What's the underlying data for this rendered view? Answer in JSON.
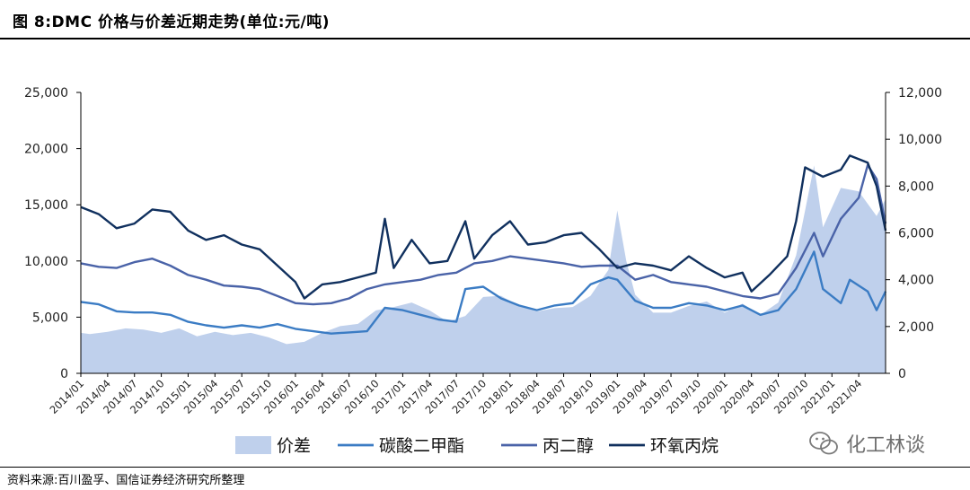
{
  "figure": {
    "title": "图 8:DMC 价格与价差近期走势(单位:元/吨)",
    "source": "资料来源:百川盈孚、国信证券经济研究所整理",
    "watermark": "化工林谈"
  },
  "chart_data": {
    "type": "line",
    "title": "图 8:DMC 价格与价差近期走势(单位:元/吨)",
    "xlabel": "",
    "ylabel_left": "",
    "ylabel_right": "",
    "y_left": {
      "lim": [
        0,
        25000
      ],
      "ticks": [
        0,
        5000,
        10000,
        15000,
        20000,
        25000
      ],
      "tick_labels": [
        "0",
        "5,000",
        "10,000",
        "15,000",
        "20,000",
        "25,000"
      ]
    },
    "y_right": {
      "lim": [
        0,
        12000
      ],
      "ticks": [
        0,
        2000,
        4000,
        6000,
        8000,
        10000,
        12000
      ],
      "tick_labels": [
        "0",
        "2,000",
        "4,000",
        "6,000",
        "8,000",
        "10,000",
        "12,000"
      ]
    },
    "x_tick_labels": [
      "2014/01",
      "2014/04",
      "2014/07",
      "2014/10",
      "2015/01",
      "2015/04",
      "2015/07",
      "2015/10",
      "2016/01",
      "2016/04",
      "2016/07",
      "2016/10",
      "2017/01",
      "2017/04",
      "2017/07",
      "2017/10",
      "2018/01",
      "2018/04",
      "2018/07",
      "2018/10",
      "2019/01",
      "2019/04",
      "2019/07",
      "2019/10",
      "2020/01",
      "2020/04",
      "2020/07",
      "2020/10",
      "2021/01",
      "2021/04"
    ],
    "x_end": "2021/07",
    "grid": false,
    "legend_position": "bottom",
    "series": [
      {
        "name": "价差",
        "type": "area",
        "axis": "left",
        "color": "#bfd0ec",
        "points": [
          [
            "2014/01",
            3600
          ],
          [
            "2014/02",
            3500
          ],
          [
            "2014/04",
            3700
          ],
          [
            "2014/06",
            4000
          ],
          [
            "2014/08",
            3900
          ],
          [
            "2014/10",
            3600
          ],
          [
            "2014/12",
            4000
          ],
          [
            "2015/02",
            3300
          ],
          [
            "2015/04",
            3700
          ],
          [
            "2015/06",
            3400
          ],
          [
            "2015/08",
            3600
          ],
          [
            "2015/10",
            3200
          ],
          [
            "2015/12",
            2600
          ],
          [
            "2016/02",
            2800
          ],
          [
            "2016/04",
            3600
          ],
          [
            "2016/06",
            4200
          ],
          [
            "2016/08",
            4400
          ],
          [
            "2016/10",
            5600
          ],
          [
            "2016/12",
            5900
          ],
          [
            "2017/02",
            6300
          ],
          [
            "2017/04",
            5600
          ],
          [
            "2017/06",
            4600
          ],
          [
            "2017/08",
            5100
          ],
          [
            "2017/10",
            6800
          ],
          [
            "2017/12",
            6900
          ],
          [
            "2018/02",
            6000
          ],
          [
            "2018/04",
            5500
          ],
          [
            "2018/06",
            5800
          ],
          [
            "2018/08",
            5900
          ],
          [
            "2018/10",
            6900
          ],
          [
            "2018/12",
            9200
          ],
          [
            "2019/01",
            14500
          ],
          [
            "2019/02",
            10000
          ],
          [
            "2019/03",
            7000
          ],
          [
            "2019/05",
            5400
          ],
          [
            "2019/07",
            5400
          ],
          [
            "2019/09",
            6000
          ],
          [
            "2019/11",
            6400
          ],
          [
            "2020/01",
            5400
          ],
          [
            "2020/03",
            6200
          ],
          [
            "2020/05",
            5200
          ],
          [
            "2020/07",
            6300
          ],
          [
            "2020/09",
            10500
          ],
          [
            "2020/11",
            18500
          ],
          [
            "2020/12",
            13000
          ],
          [
            "2021/02",
            16500
          ],
          [
            "2021/04",
            16200
          ],
          [
            "2021/06",
            14000
          ],
          [
            "2021/07",
            15500
          ]
        ]
      },
      {
        "name": "碳酸二甲酯",
        "type": "line",
        "axis": "right",
        "color": "#3b7cc4",
        "points": [
          [
            "2014/01",
            3050
          ],
          [
            "2014/03",
            2950
          ],
          [
            "2014/05",
            2650
          ],
          [
            "2014/07",
            2600
          ],
          [
            "2014/09",
            2600
          ],
          [
            "2014/11",
            2500
          ],
          [
            "2015/01",
            2200
          ],
          [
            "2015/03",
            2050
          ],
          [
            "2015/05",
            1950
          ],
          [
            "2015/07",
            2050
          ],
          [
            "2015/09",
            1950
          ],
          [
            "2015/11",
            2100
          ],
          [
            "2016/01",
            1900
          ],
          [
            "2016/03",
            1800
          ],
          [
            "2016/05",
            1700
          ],
          [
            "2016/07",
            1750
          ],
          [
            "2016/09",
            1800
          ],
          [
            "2016/11",
            2800
          ],
          [
            "2017/01",
            2700
          ],
          [
            "2017/03",
            2500
          ],
          [
            "2017/05",
            2300
          ],
          [
            "2017/07",
            2200
          ],
          [
            "2017/08",
            3600
          ],
          [
            "2017/10",
            3700
          ],
          [
            "2017/12",
            3200
          ],
          [
            "2018/02",
            2900
          ],
          [
            "2018/04",
            2700
          ],
          [
            "2018/06",
            2900
          ],
          [
            "2018/08",
            3000
          ],
          [
            "2018/10",
            3800
          ],
          [
            "2018/12",
            4100
          ],
          [
            "2019/01",
            4000
          ],
          [
            "2019/03",
            3100
          ],
          [
            "2019/05",
            2800
          ],
          [
            "2019/07",
            2800
          ],
          [
            "2019/09",
            3000
          ],
          [
            "2019/11",
            2900
          ],
          [
            "2020/01",
            2700
          ],
          [
            "2020/03",
            2900
          ],
          [
            "2020/05",
            2500
          ],
          [
            "2020/07",
            2700
          ],
          [
            "2020/09",
            3600
          ],
          [
            "2020/11",
            5200
          ],
          [
            "2020/12",
            3600
          ],
          [
            "2021/02",
            3000
          ],
          [
            "2021/03",
            4000
          ],
          [
            "2021/05",
            3500
          ],
          [
            "2021/06",
            2700
          ],
          [
            "2021/07",
            3500
          ]
        ]
      },
      {
        "name": "丙二醇",
        "type": "line",
        "axis": "right",
        "color": "#4a63a8",
        "points": [
          [
            "2014/01",
            4700
          ],
          [
            "2014/03",
            4550
          ],
          [
            "2014/05",
            4500
          ],
          [
            "2014/07",
            4750
          ],
          [
            "2014/09",
            4900
          ],
          [
            "2014/11",
            4600
          ],
          [
            "2015/01",
            4200
          ],
          [
            "2015/03",
            4000
          ],
          [
            "2015/05",
            3750
          ],
          [
            "2015/07",
            3700
          ],
          [
            "2015/09",
            3600
          ],
          [
            "2015/11",
            3300
          ],
          [
            "2016/01",
            3000
          ],
          [
            "2016/03",
            2950
          ],
          [
            "2016/05",
            3000
          ],
          [
            "2016/07",
            3200
          ],
          [
            "2016/09",
            3600
          ],
          [
            "2016/11",
            3800
          ],
          [
            "2017/01",
            3900
          ],
          [
            "2017/03",
            4000
          ],
          [
            "2017/05",
            4200
          ],
          [
            "2017/07",
            4300
          ],
          [
            "2017/09",
            4700
          ],
          [
            "2017/11",
            4800
          ],
          [
            "2018/01",
            5000
          ],
          [
            "2018/03",
            4900
          ],
          [
            "2018/05",
            4800
          ],
          [
            "2018/07",
            4700
          ],
          [
            "2018/09",
            4550
          ],
          [
            "2018/11",
            4600
          ],
          [
            "2019/01",
            4600
          ],
          [
            "2019/03",
            4000
          ],
          [
            "2019/05",
            4200
          ],
          [
            "2019/07",
            3900
          ],
          [
            "2019/09",
            3800
          ],
          [
            "2019/11",
            3700
          ],
          [
            "2020/01",
            3500
          ],
          [
            "2020/03",
            3300
          ],
          [
            "2020/05",
            3200
          ],
          [
            "2020/07",
            3400
          ],
          [
            "2020/09",
            4500
          ],
          [
            "2020/11",
            6000
          ],
          [
            "2020/12",
            5000
          ],
          [
            "2021/02",
            6600
          ],
          [
            "2021/04",
            7500
          ],
          [
            "2021/05",
            8900
          ],
          [
            "2021/06",
            8300
          ],
          [
            "2021/07",
            6400
          ]
        ]
      },
      {
        "name": "环氧丙烷",
        "type": "line",
        "axis": "right",
        "color": "#10305e",
        "points": [
          [
            "2014/01",
            7100
          ],
          [
            "2014/03",
            6800
          ],
          [
            "2014/05",
            6200
          ],
          [
            "2014/07",
            6400
          ],
          [
            "2014/09",
            7000
          ],
          [
            "2014/11",
            6900
          ],
          [
            "2015/01",
            6100
          ],
          [
            "2015/03",
            5700
          ],
          [
            "2015/05",
            5900
          ],
          [
            "2015/07",
            5500
          ],
          [
            "2015/09",
            5300
          ],
          [
            "2015/11",
            4600
          ],
          [
            "2016/01",
            3900
          ],
          [
            "2016/02",
            3200
          ],
          [
            "2016/04",
            3800
          ],
          [
            "2016/06",
            3900
          ],
          [
            "2016/08",
            4100
          ],
          [
            "2016/10",
            4300
          ],
          [
            "2016/11",
            6600
          ],
          [
            "2016/12",
            4500
          ],
          [
            "2017/02",
            5700
          ],
          [
            "2017/04",
            4700
          ],
          [
            "2017/06",
            4800
          ],
          [
            "2017/08",
            6500
          ],
          [
            "2017/09",
            4900
          ],
          [
            "2017/11",
            5900
          ],
          [
            "2018/01",
            6500
          ],
          [
            "2018/03",
            5500
          ],
          [
            "2018/05",
            5600
          ],
          [
            "2018/07",
            5900
          ],
          [
            "2018/09",
            6000
          ],
          [
            "2018/11",
            5300
          ],
          [
            "2019/01",
            4500
          ],
          [
            "2019/03",
            4700
          ],
          [
            "2019/05",
            4600
          ],
          [
            "2019/07",
            4400
          ],
          [
            "2019/09",
            5000
          ],
          [
            "2019/11",
            4500
          ],
          [
            "2020/01",
            4100
          ],
          [
            "2020/03",
            4300
          ],
          [
            "2020/04",
            3500
          ],
          [
            "2020/06",
            4200
          ],
          [
            "2020/08",
            5000
          ],
          [
            "2020/09",
            6500
          ],
          [
            "2020/10",
            8800
          ],
          [
            "2020/12",
            8400
          ],
          [
            "2021/02",
            8700
          ],
          [
            "2021/03",
            9300
          ],
          [
            "2021/05",
            9000
          ],
          [
            "2021/06",
            8000
          ],
          [
            "2021/07",
            6100
          ]
        ]
      }
    ]
  }
}
